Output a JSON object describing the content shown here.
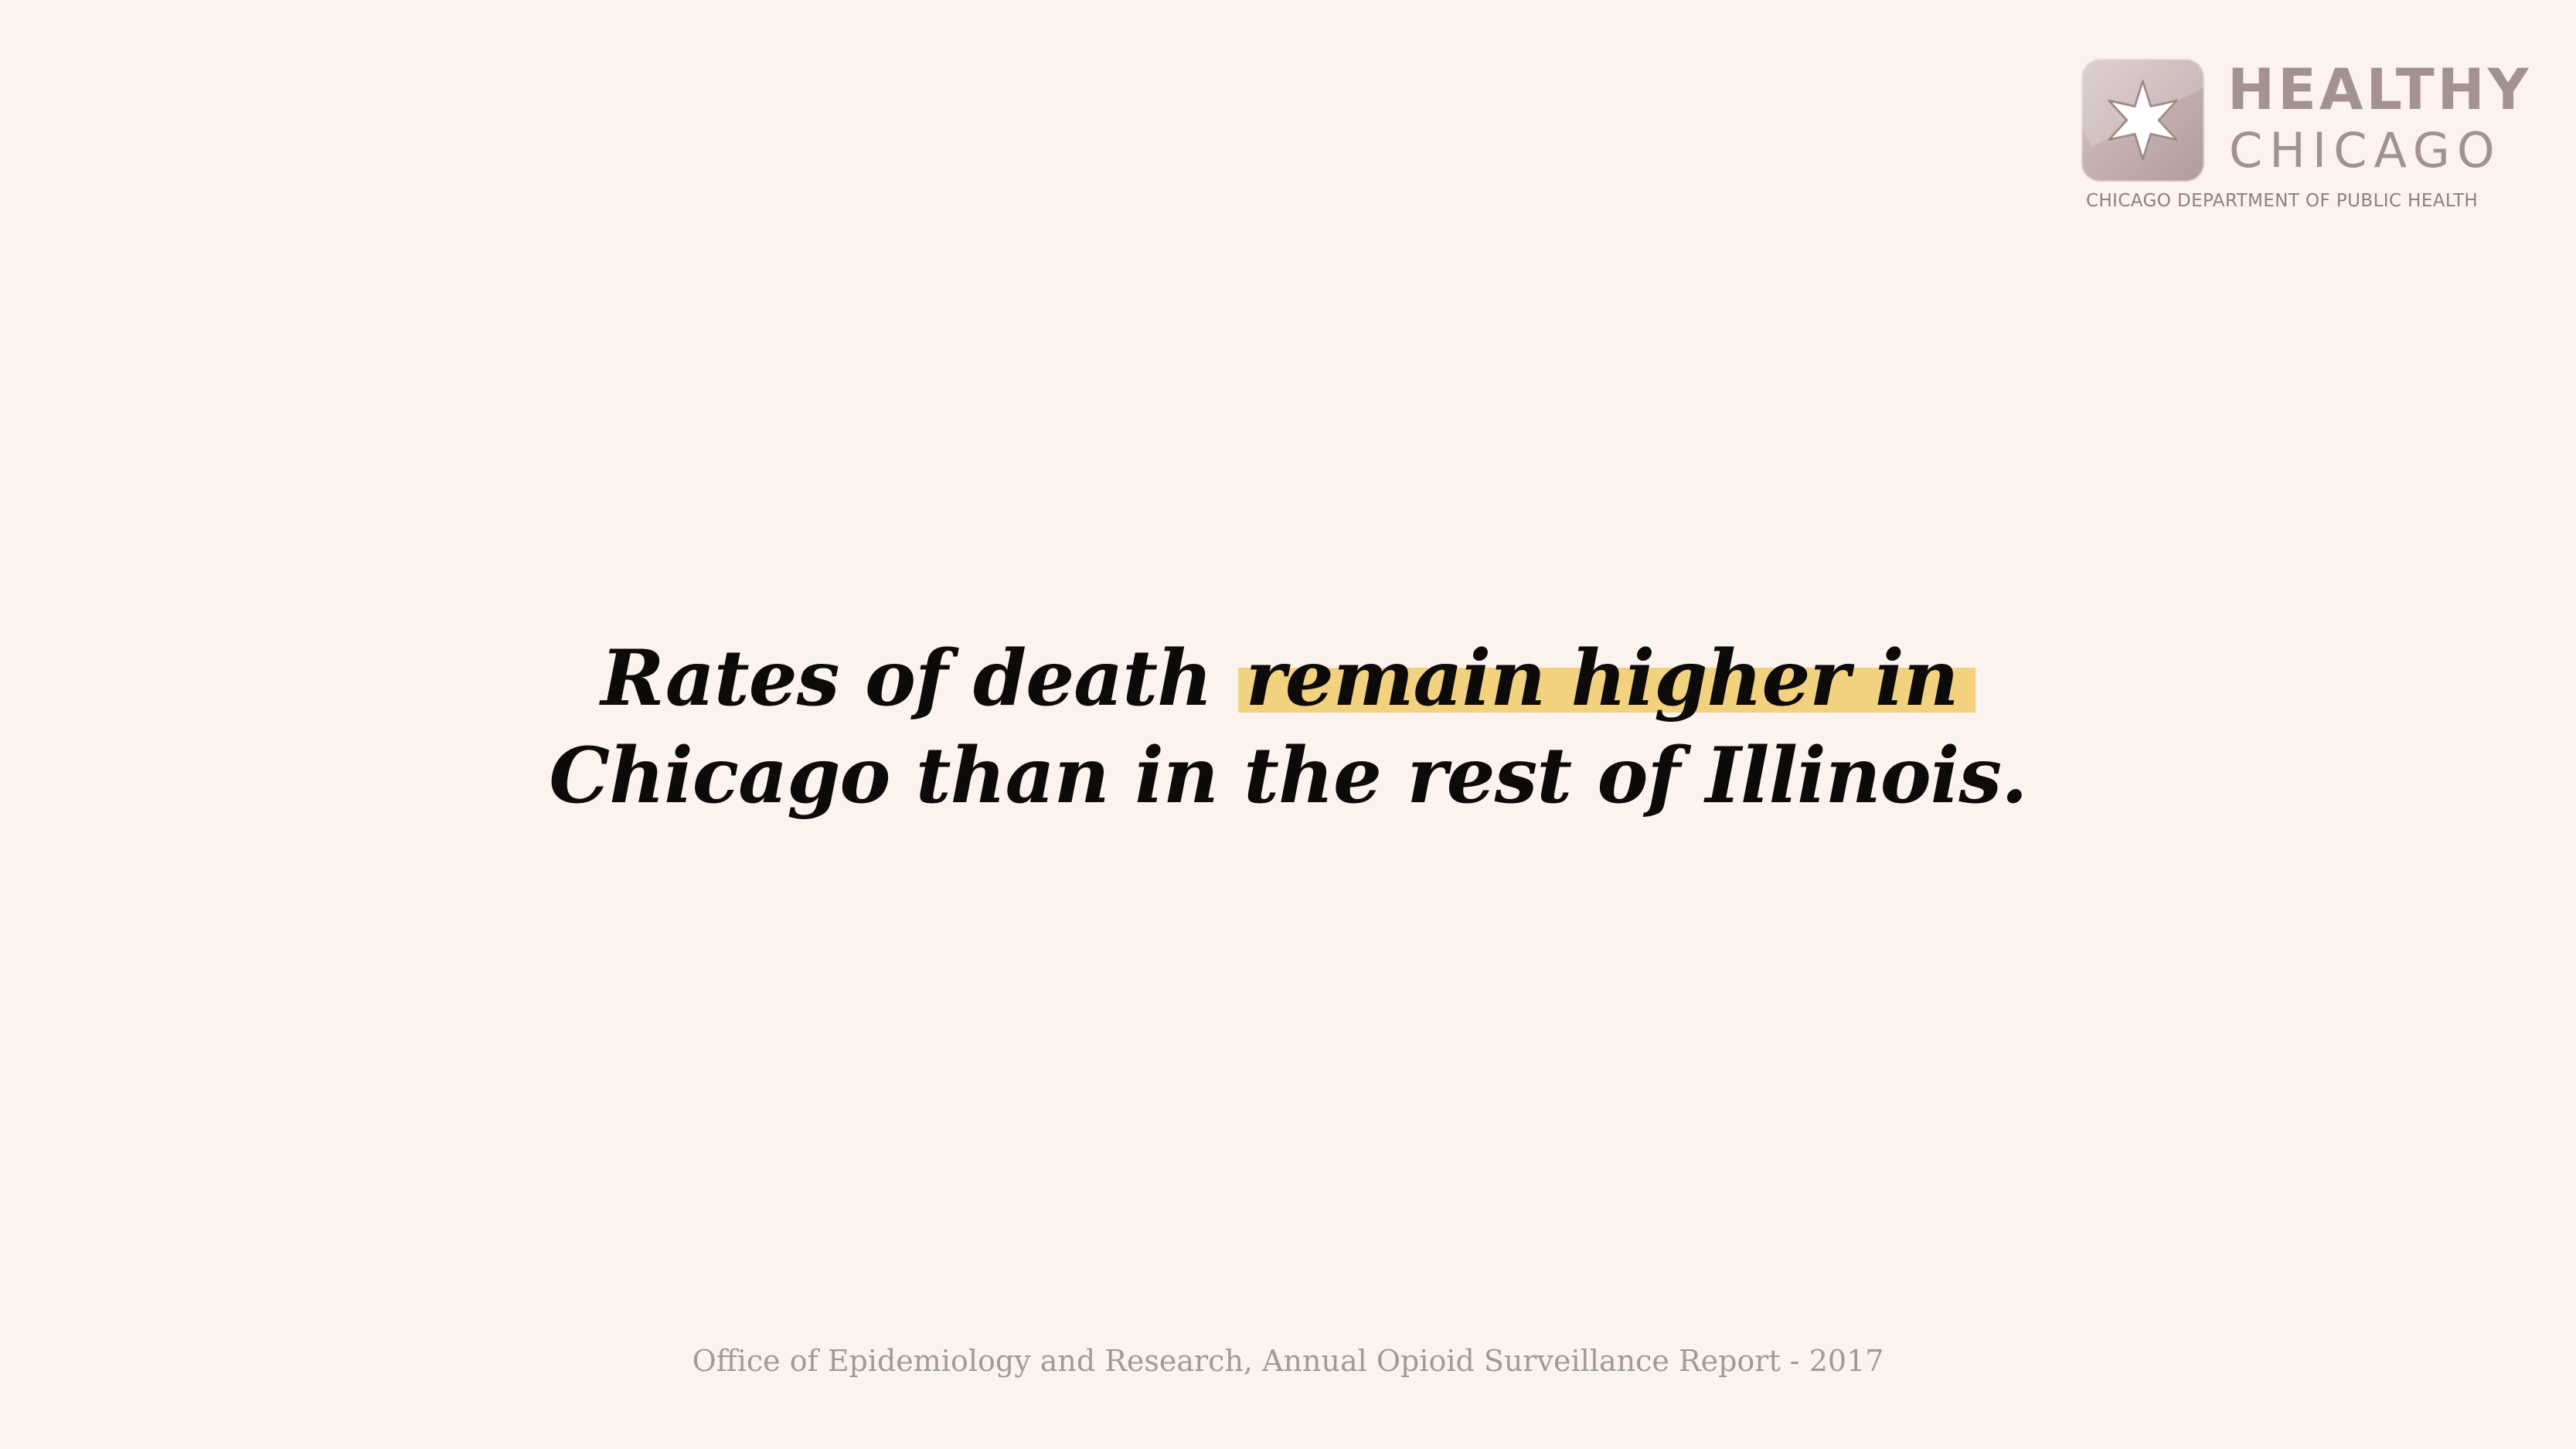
{
  "logo": {
    "badge_icon": "six-point-star-icon",
    "line1": "HEALTHY",
    "line2": "CHICAGO",
    "line3": "CHICAGO DEPARTMENT OF PUBLIC HEALTH"
  },
  "headline": {
    "line1_plain": "Rates of death ",
    "line1_highlight": "remain higher in",
    "line2": "Chicago than in the rest of Illinois.",
    "highlight_color": "#f2d27e"
  },
  "footer": {
    "source": "Office of Epidemiology and Research, Annual Opioid Surveillance Report - 2017"
  },
  "colors": {
    "background": "#fcf3ef",
    "headline_text": "#0d0a0a",
    "logo_text": "#a39291",
    "footer_text": "#a39a98"
  }
}
